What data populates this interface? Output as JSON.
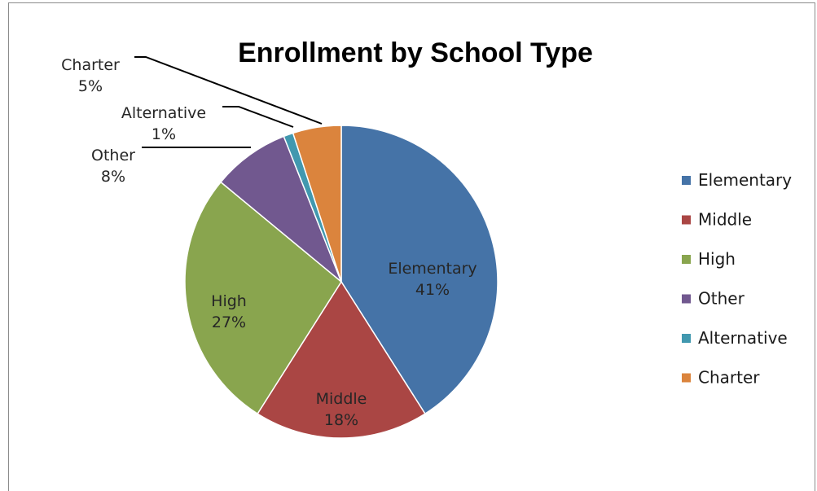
{
  "chart_data": {
    "type": "pie",
    "title": "Enrollment by School Type",
    "categories": [
      "Elementary",
      "Middle",
      "High",
      "Other",
      "Alternative",
      "Charter"
    ],
    "values": [
      41,
      18,
      27,
      8,
      1,
      5
    ],
    "labels": [
      "41%",
      "18%",
      "27%",
      "8%",
      "1%",
      "5%"
    ],
    "colors": [
      "#4573a7",
      "#aa4644",
      "#89a54e",
      "#71588f",
      "#4198af",
      "#db843d"
    ],
    "legend": {
      "position": "right",
      "entries": [
        "Elementary",
        "Middle",
        "High",
        "Other",
        "Alternative",
        "Charter"
      ]
    }
  }
}
